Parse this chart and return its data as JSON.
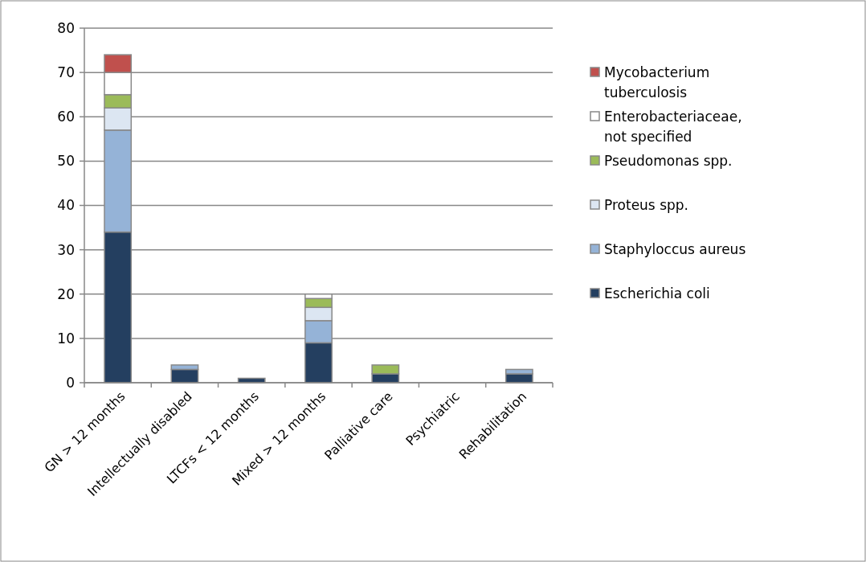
{
  "chart_data": {
    "type": "bar",
    "stacked": true,
    "categories": [
      "GN > 12 months",
      "Intellectually disabled",
      "LTCFs < 12 months",
      "Mixed > 12 months",
      "Palliative care",
      "Psychiatric",
      "Rehabilitation"
    ],
    "series": [
      {
        "name": "Escherichia coli",
        "color": "#243f60",
        "values": [
          34,
          3,
          1,
          9,
          2,
          0,
          2
        ]
      },
      {
        "name": "Staphyloccus aureus",
        "color": "#95b3d7",
        "values": [
          23,
          1,
          0,
          5,
          0,
          0,
          1
        ]
      },
      {
        "name": "Proteus spp.",
        "color": "#dce6f2",
        "values": [
          5,
          0,
          0,
          3,
          0,
          0,
          0
        ]
      },
      {
        "name": "Pseudomonas spp.",
        "color": "#9bbb59",
        "values": [
          3,
          0,
          0,
          2,
          2,
          0,
          0
        ]
      },
      {
        "name": "Enterobacteriaceae, not specified",
        "color": "#ffffff",
        "values": [
          5,
          0,
          0,
          1,
          0,
          0,
          0
        ]
      },
      {
        "name": "Mycobacterium tuberculosis",
        "color": "#c0504d",
        "values": [
          4,
          0,
          0,
          0,
          0,
          0,
          0
        ]
      }
    ],
    "ylim": [
      0,
      80
    ],
    "yticks": [
      0,
      10,
      20,
      30,
      40,
      50,
      60,
      70,
      80
    ],
    "grid": "y",
    "legend": "right"
  }
}
